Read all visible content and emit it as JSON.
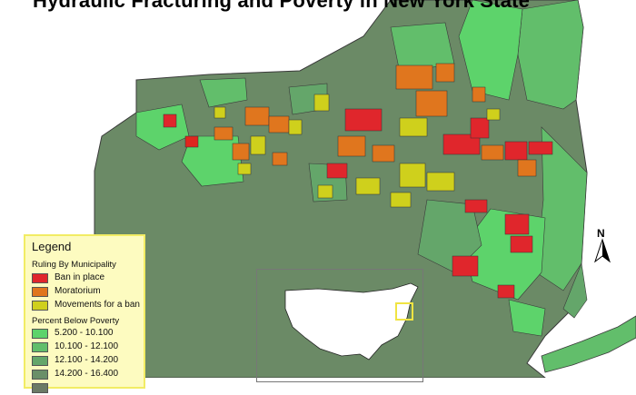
{
  "title": "Hydraulic Fracturing and Poverty in New York State",
  "legend": {
    "title": "Legend",
    "ruling_header": "Ruling By Municipality",
    "ruling_items": [
      {
        "label": "Ban in place",
        "color": "#e0262c"
      },
      {
        "label": "Moratorium",
        "color": "#e0761e"
      },
      {
        "label": "Movements for a ban",
        "color": "#cfd01c"
      }
    ],
    "poverty_header": "Percent Below Poverty",
    "poverty_items": [
      {
        "label": "5.200 - 10.100",
        "color": "#5dd36b"
      },
      {
        "label": "10.100 - 12.100",
        "color": "#62be6b"
      },
      {
        "label": "12.100 - 14.200",
        "color": "#64a66a"
      },
      {
        "label": "14.200 - 16.400",
        "color": "#6a8f68"
      },
      {
        "label": "",
        "color": "#6b7a66"
      }
    ]
  },
  "north_arrow": "N",
  "colors": {
    "state_border": "#3a3a3a",
    "inset_highlight": "#f0e442"
  }
}
